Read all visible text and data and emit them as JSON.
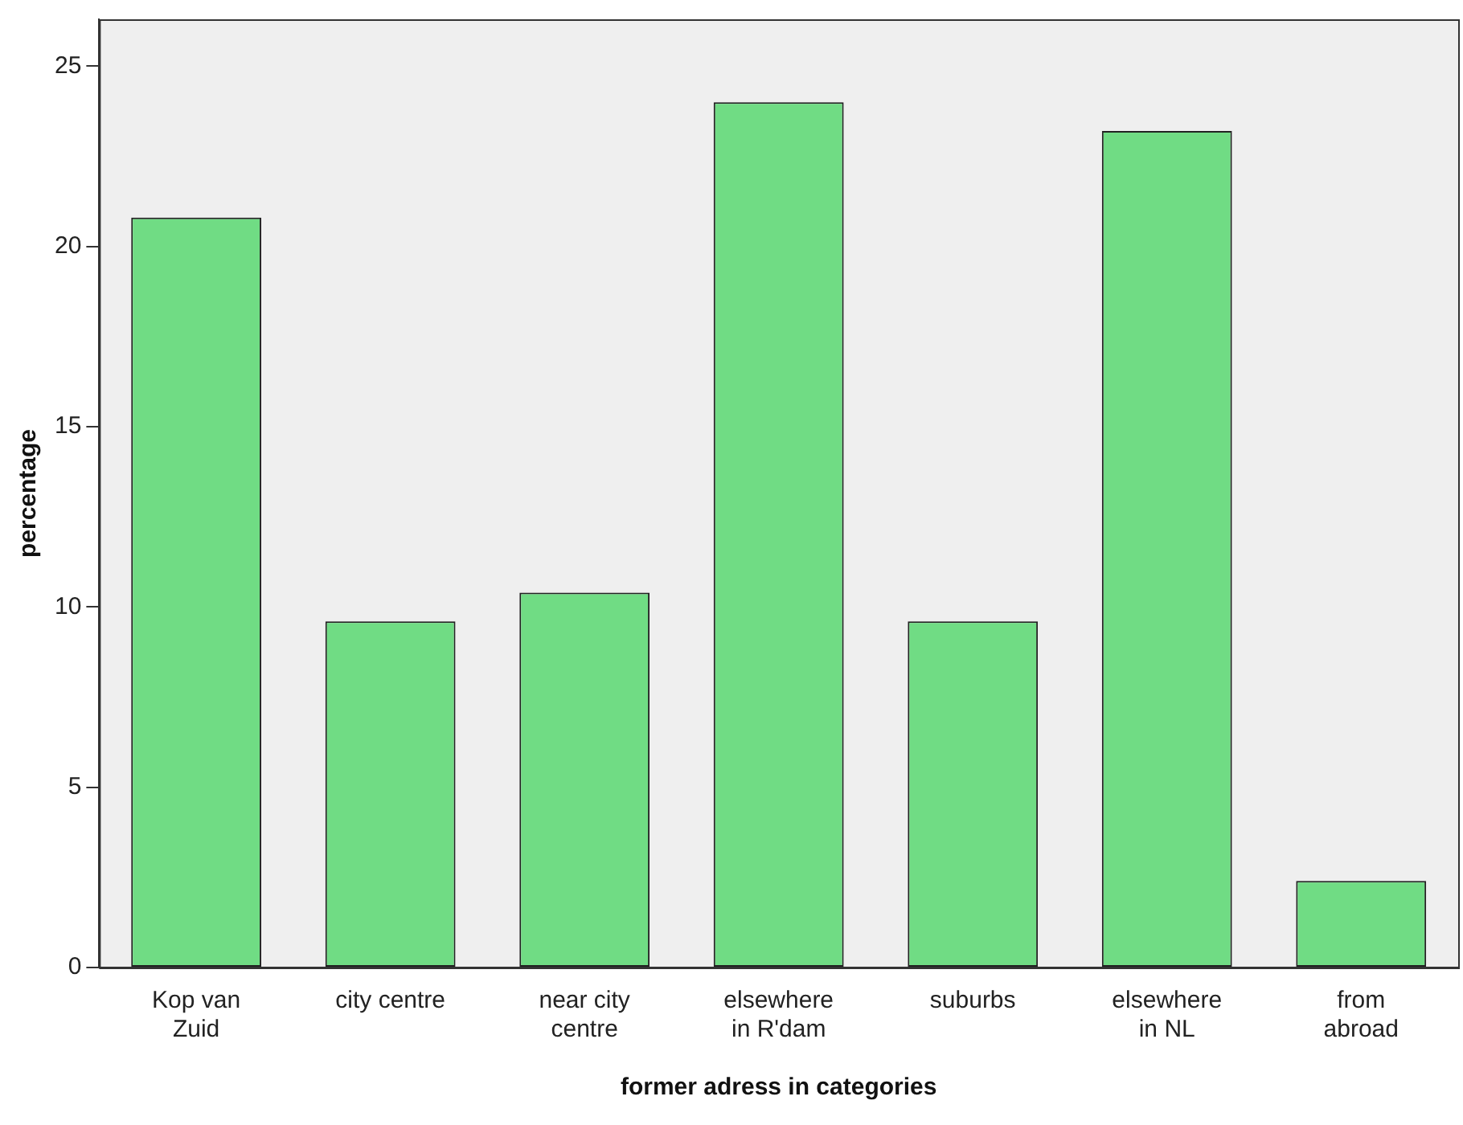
{
  "chart_data": {
    "type": "bar",
    "xlabel": "former adress in categories",
    "ylabel": "percentage",
    "categories": [
      "Kop van\nZuid",
      "city centre",
      "near city\ncentre",
      "elsewhere\nin R'dam",
      "suburbs",
      "elsewhere\nin NL",
      "from\nabroad"
    ],
    "values": [
      20.8,
      9.6,
      10.4,
      24.0,
      9.6,
      23.2,
      2.4
    ],
    "color": "#70dc84",
    "ylim": [
      0,
      26.3
    ],
    "yticks": [
      0,
      5,
      10,
      15,
      20,
      25
    ],
    "grid": false,
    "legend": false
  }
}
